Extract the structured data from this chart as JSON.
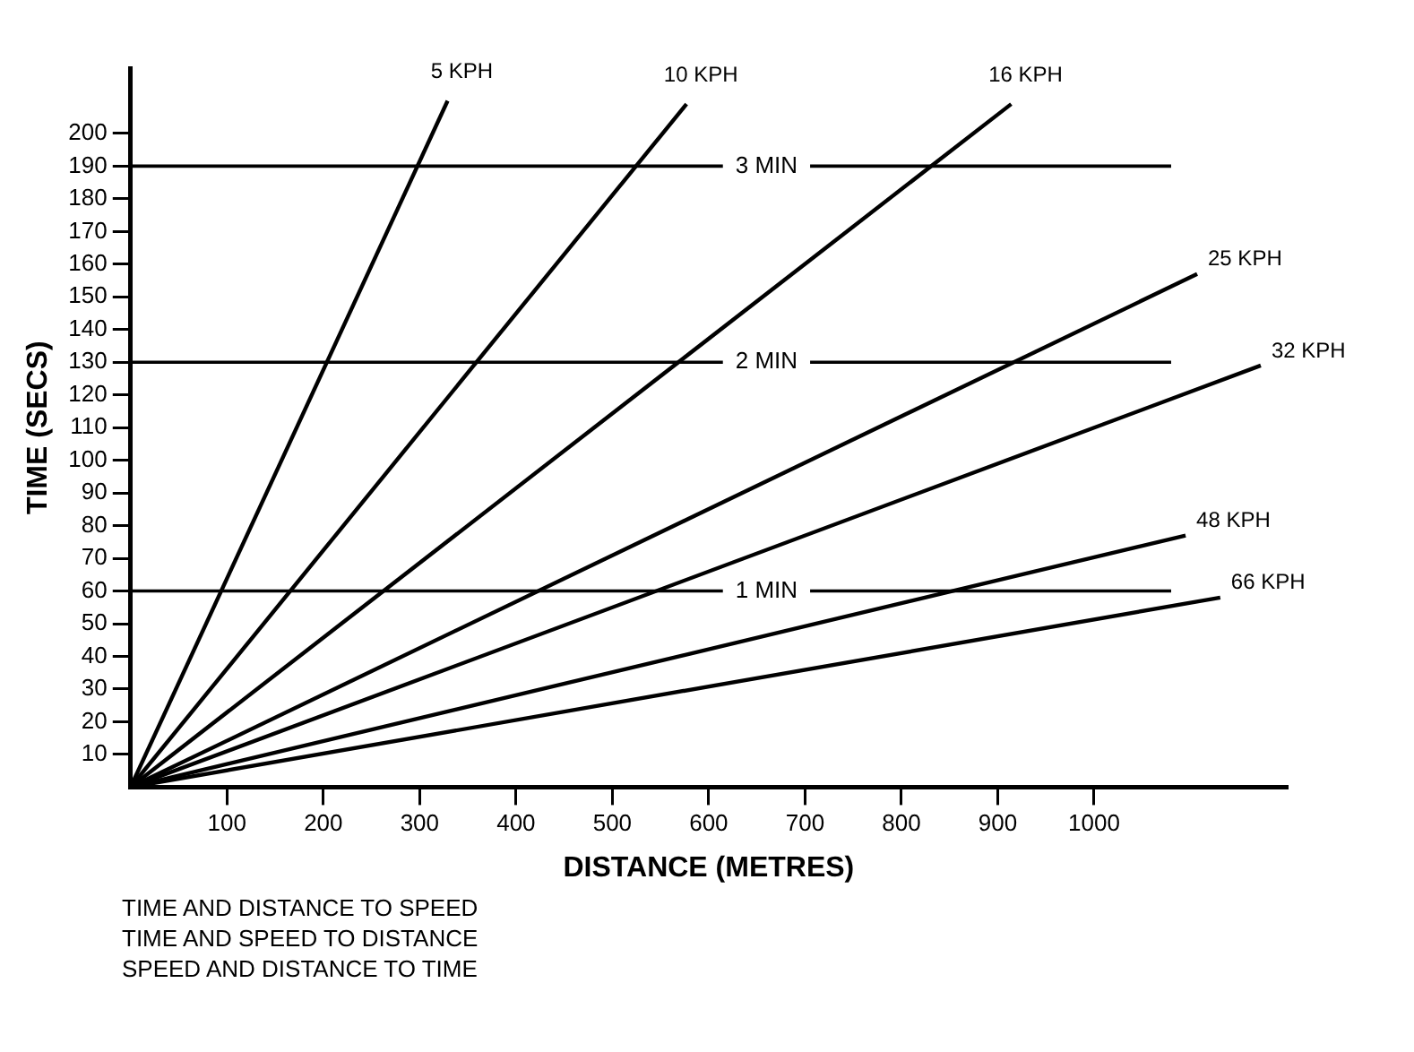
{
  "chart_data": {
    "type": "line",
    "xlabel": "DISTANCE (METRES)",
    "ylabel": "TIME (SECS)",
    "xlim": [
      0,
      1200
    ],
    "ylim": [
      0,
      220
    ],
    "xticks": [
      100,
      200,
      300,
      400,
      500,
      600,
      700,
      800,
      900,
      1000
    ],
    "yticks": [
      10,
      20,
      30,
      40,
      50,
      60,
      70,
      80,
      90,
      100,
      110,
      120,
      130,
      140,
      150,
      160,
      170,
      180,
      190,
      200
    ],
    "grid": false,
    "legend": false,
    "marker": "none",
    "line_style": "solid",
    "series": [
      {
        "name": "5 KPH",
        "color": "#000000",
        "x": [
          0,
          329
        ],
        "values": [
          0,
          210
        ]
      },
      {
        "name": "10 KPH",
        "color": "#000000",
        "x": [
          0,
          577
        ],
        "values": [
          0,
          209
        ]
      },
      {
        "name": "16 KPH",
        "color": "#000000",
        "x": [
          0,
          914
        ],
        "values": [
          0,
          209
        ]
      },
      {
        "name": "25 KPH",
        "color": "#000000",
        "x": [
          0,
          1107
        ],
        "values": [
          0,
          157
        ]
      },
      {
        "name": "32 KPH",
        "color": "#000000",
        "x": [
          0,
          1173
        ],
        "values": [
          0,
          129
        ]
      },
      {
        "name": "48 KPH",
        "color": "#000000",
        "x": [
          0,
          1095
        ],
        "values": [
          0,
          77
        ]
      },
      {
        "name": "66 KPH",
        "color": "#000000",
        "x": [
          0,
          1131
        ],
        "values": [
          0,
          58
        ]
      }
    ],
    "ref_lines": [
      {
        "axis": "y",
        "value": 190,
        "label": "3 MIN",
        "color": "#000000",
        "line_style": "solid"
      },
      {
        "axis": "y",
        "value": 130,
        "label": "2 MIN",
        "color": "#000000",
        "line_style": "solid"
      },
      {
        "axis": "y",
        "value": 60,
        "label": "1 MIN",
        "color": "#000000",
        "line_style": "solid"
      }
    ],
    "annotations": [
      "TIME AND DISTANCE TO SPEED",
      "TIME AND SPEED TO DISTANCE",
      "SPEED AND DISTANCE TO TIME"
    ]
  }
}
